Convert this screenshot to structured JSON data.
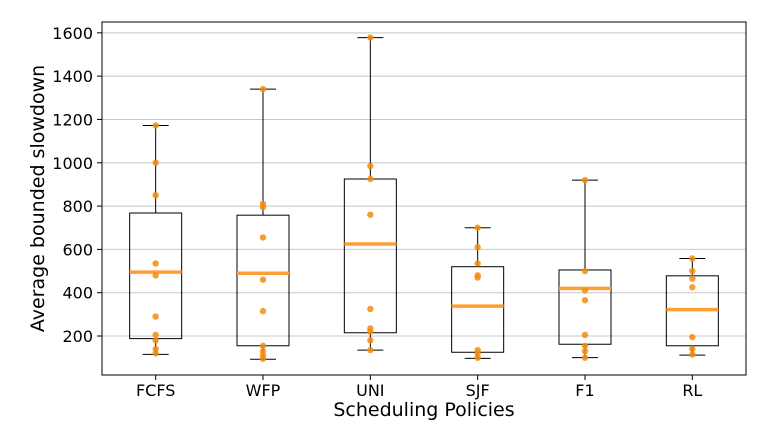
{
  "chart_data": {
    "type": "box",
    "title": "",
    "xlabel": "Scheduling Policies",
    "ylabel": "Average bounded slowdown",
    "ylim": [
      20,
      1650
    ],
    "yticks": [
      200,
      400,
      600,
      800,
      1000,
      1200,
      1400,
      1600
    ],
    "grid": "horizontal",
    "legend": "none",
    "colors": {
      "median": "#ff9f33",
      "points": "#f28c10",
      "box": "#000000",
      "grid": "#c8c8c8"
    },
    "categories": [
      "FCFS",
      "WFP",
      "UNI",
      "SJF",
      "F1",
      "RL"
    ],
    "boxes": [
      {
        "name": "FCFS",
        "whisker_low": 115,
        "q1": 188,
        "median": 495,
        "q3": 768,
        "whisker_high": 1172,
        "points": [
          120,
          140,
          180,
          205,
          290,
          480,
          535,
          850,
          1000,
          1172
        ]
      },
      {
        "name": "WFP",
        "whisker_low": 93,
        "q1": 155,
        "median": 490,
        "q3": 758,
        "whisker_high": 1340,
        "points": [
          95,
          110,
          130,
          155,
          315,
          460,
          655,
          795,
          810,
          1340
        ]
      },
      {
        "name": "UNI",
        "whisker_low": 135,
        "q1": 215,
        "median": 625,
        "q3": 925,
        "whisker_high": 1578,
        "points": [
          135,
          180,
          220,
          235,
          325,
          760,
          925,
          985,
          1578
        ]
      },
      {
        "name": "SJF",
        "whisker_low": 97,
        "q1": 125,
        "median": 338,
        "q3": 520,
        "whisker_high": 700,
        "points": [
          100,
          120,
          135,
          470,
          480,
          535,
          610,
          700
        ]
      },
      {
        "name": "F1",
        "whisker_low": 100,
        "q1": 162,
        "median": 420,
        "q3": 505,
        "whisker_high": 920,
        "points": [
          100,
          130,
          155,
          205,
          365,
          410,
          500,
          920
        ]
      },
      {
        "name": "RL",
        "whisker_low": 112,
        "q1": 155,
        "median": 322,
        "q3": 478,
        "whisker_high": 558,
        "points": [
          115,
          140,
          195,
          425,
          465,
          500,
          558
        ]
      }
    ]
  }
}
